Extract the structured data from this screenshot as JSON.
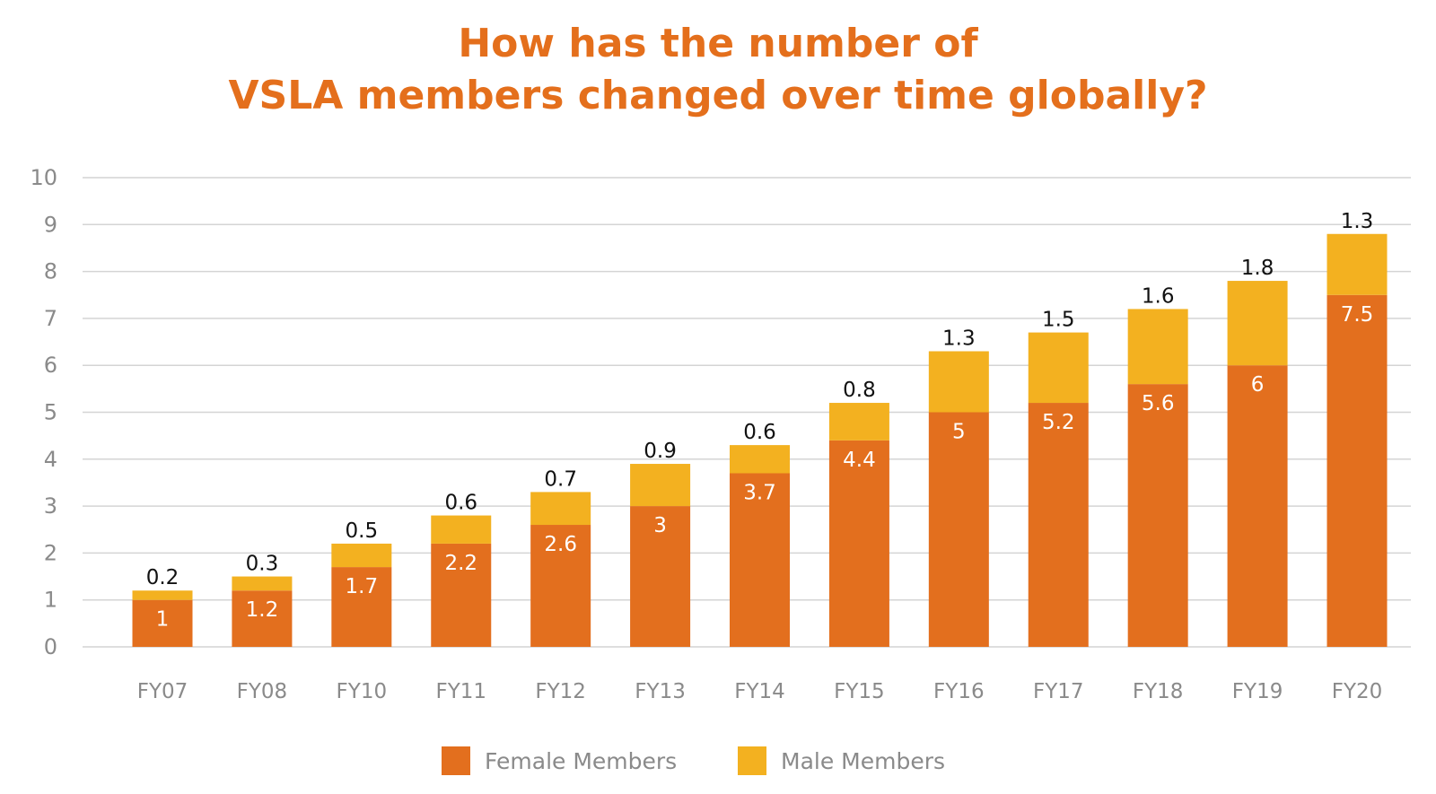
{
  "chart_data": {
    "type": "bar",
    "stacked": true,
    "title_lines": [
      "How has the number of",
      "VSLA members changed over time globally?"
    ],
    "xlabel": "",
    "ylabel": "",
    "ylim": [
      0,
      10
    ],
    "y_ticks": [
      0,
      1,
      2,
      3,
      4,
      5,
      6,
      7,
      8,
      9,
      10
    ],
    "grid": "horizontal",
    "legend_position": "bottom-center",
    "categories": [
      "FY07",
      "FY08",
      "FY10",
      "FY11",
      "FY12",
      "FY13",
      "FY14",
      "FY15",
      "FY16",
      "FY17",
      "FY18",
      "FY19",
      "FY20"
    ],
    "series": [
      {
        "name": "Female Members",
        "color": "#e36f1e",
        "values": [
          1,
          1.2,
          1.7,
          2.2,
          2.6,
          3,
          3.7,
          4.4,
          5,
          5.2,
          5.6,
          6,
          7.5
        ]
      },
      {
        "name": "Male Members",
        "color": "#f3b120",
        "values": [
          0.2,
          0.3,
          0.5,
          0.6,
          0.7,
          0.9,
          0.6,
          0.8,
          1.3,
          1.5,
          1.6,
          1.8,
          1.3
        ]
      }
    ],
    "colors": {
      "title": "#e46f1c",
      "grid": "#d4d4d4",
      "axis_text": "#8a8a8a",
      "segment_label": "#ffffff",
      "top_label": "#111111"
    }
  }
}
